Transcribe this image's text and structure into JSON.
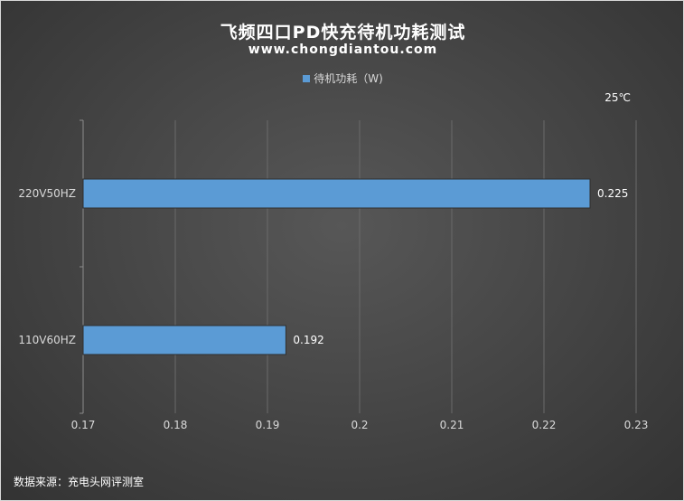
{
  "header": {
    "title": "飞频四口PD快充待机功耗测试",
    "subtitle": "www.chongdiantou.com"
  },
  "annotation": "25℃",
  "source": "数据来源：充电头网评测室",
  "colors": {
    "bar": "#5b9bd5",
    "background": "#474747",
    "grid": "#6a6a6a",
    "text": "#d9d9d9"
  },
  "chart_data": {
    "type": "bar",
    "orientation": "horizontal",
    "categories": [
      "220V50HZ",
      "110V60HZ"
    ],
    "series": [
      {
        "name": "待机功耗（W)",
        "values": [
          0.225,
          0.192
        ]
      }
    ],
    "xlim": [
      0.17,
      0.23
    ],
    "xticks": [
      0.17,
      0.18,
      0.19,
      0.2,
      0.21,
      0.22,
      0.23
    ],
    "xtick_labels": [
      "0.17",
      "0.18",
      "0.19",
      "0.2",
      "0.21",
      "0.22",
      "0.23"
    ],
    "data_labels": [
      "0.225",
      "0.192"
    ],
    "grid": "vertical",
    "legend_position": "top"
  }
}
